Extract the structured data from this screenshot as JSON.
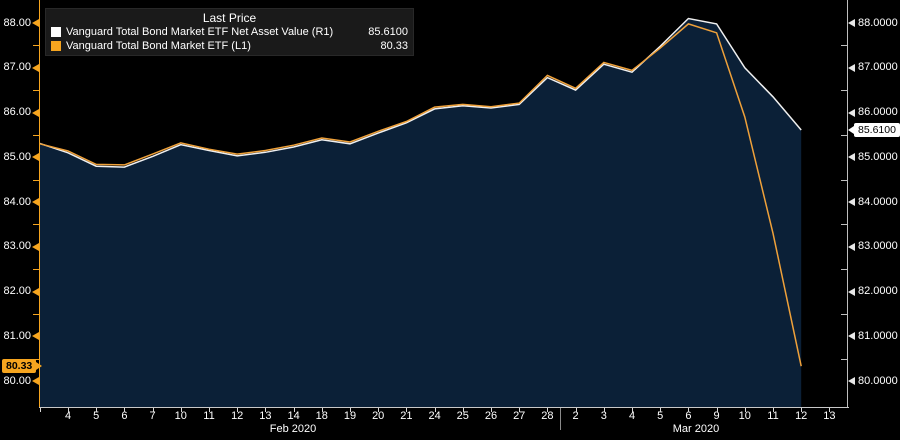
{
  "legend": {
    "title": "Last Price",
    "series": [
      {
        "label": "Vanguard Total Bond Market ETF Net Asset Value  (R1)",
        "value": "85.6100",
        "color": "#FFFFFF"
      },
      {
        "label": "Vanguard Total Bond Market ETF  (L1)",
        "value": "80.33",
        "color": "#F6A51F"
      }
    ]
  },
  "axes": {
    "left": {
      "labels": [
        "88.00",
        "87.00",
        "86.00",
        "85.00",
        "84.00",
        "83.00",
        "82.00",
        "81.00",
        "80.00"
      ],
      "tag": "80.33",
      "tag_color": "#F6A51F",
      "axis_color": "#F6A51F"
    },
    "right": {
      "labels": [
        "88.0000",
        "87.0000",
        "86.0000",
        "85.0000",
        "84.0000",
        "83.0000",
        "82.0000",
        "81.0000",
        "80.0000"
      ],
      "tag": "85.6100",
      "tag_color": "#FFFFFF",
      "axis_color": "#BFBFBF"
    },
    "x": {
      "labels": [
        "4",
        "5",
        "6",
        "7",
        "10",
        "11",
        "12",
        "13",
        "14",
        "18",
        "19",
        "20",
        "21",
        "24",
        "25",
        "26",
        "27",
        "28",
        "2",
        "3",
        "4",
        "5",
        "6",
        "9",
        "10",
        "11",
        "12",
        "13"
      ],
      "months": [
        "Feb 2020",
        "Mar 2020"
      ]
    }
  },
  "chart_data": {
    "type": "line",
    "title": "Last Price",
    "x": [
      "Feb 3",
      "Feb 4",
      "Feb 5",
      "Feb 6",
      "Feb 7",
      "Feb 10",
      "Feb 11",
      "Feb 12",
      "Feb 13",
      "Feb 14",
      "Feb 18",
      "Feb 19",
      "Feb 20",
      "Feb 21",
      "Feb 24",
      "Feb 25",
      "Feb 26",
      "Feb 27",
      "Feb 28",
      "Mar 2",
      "Mar 3",
      "Mar 4",
      "Mar 5",
      "Mar 6",
      "Mar 9",
      "Mar 10",
      "Mar 11",
      "Mar 12"
    ],
    "ylim": [
      80,
      88
    ],
    "grid": false,
    "legend_position": "top-left",
    "background": "#000000",
    "series": [
      {
        "name": "Vanguard Total Bond Market ETF Net Asset Value",
        "axis": "R1",
        "color": "#F0F0F0",
        "area": true,
        "area_color": "#0B2037",
        "last_value": 85.61,
        "values": [
          85.31,
          85.1,
          84.8,
          84.78,
          85.02,
          85.28,
          85.15,
          85.03,
          85.11,
          85.23,
          85.39,
          85.3,
          85.54,
          85.77,
          86.08,
          86.15,
          86.1,
          86.18,
          86.78,
          86.5,
          87.08,
          86.9,
          87.48,
          88.1,
          87.98,
          87.0,
          86.35,
          85.61
        ]
      },
      {
        "name": "Vanguard Total Bond Market ETF",
        "axis": "L1",
        "color": "#EFA13A",
        "area": false,
        "last_value": 80.33,
        "values": [
          85.3,
          85.14,
          84.84,
          84.83,
          85.07,
          85.32,
          85.18,
          85.07,
          85.15,
          85.27,
          85.43,
          85.34,
          85.58,
          85.8,
          86.12,
          86.18,
          86.13,
          86.21,
          86.83,
          86.54,
          87.12,
          86.94,
          87.44,
          87.98,
          87.78,
          85.9,
          83.3,
          80.33
        ]
      }
    ]
  }
}
